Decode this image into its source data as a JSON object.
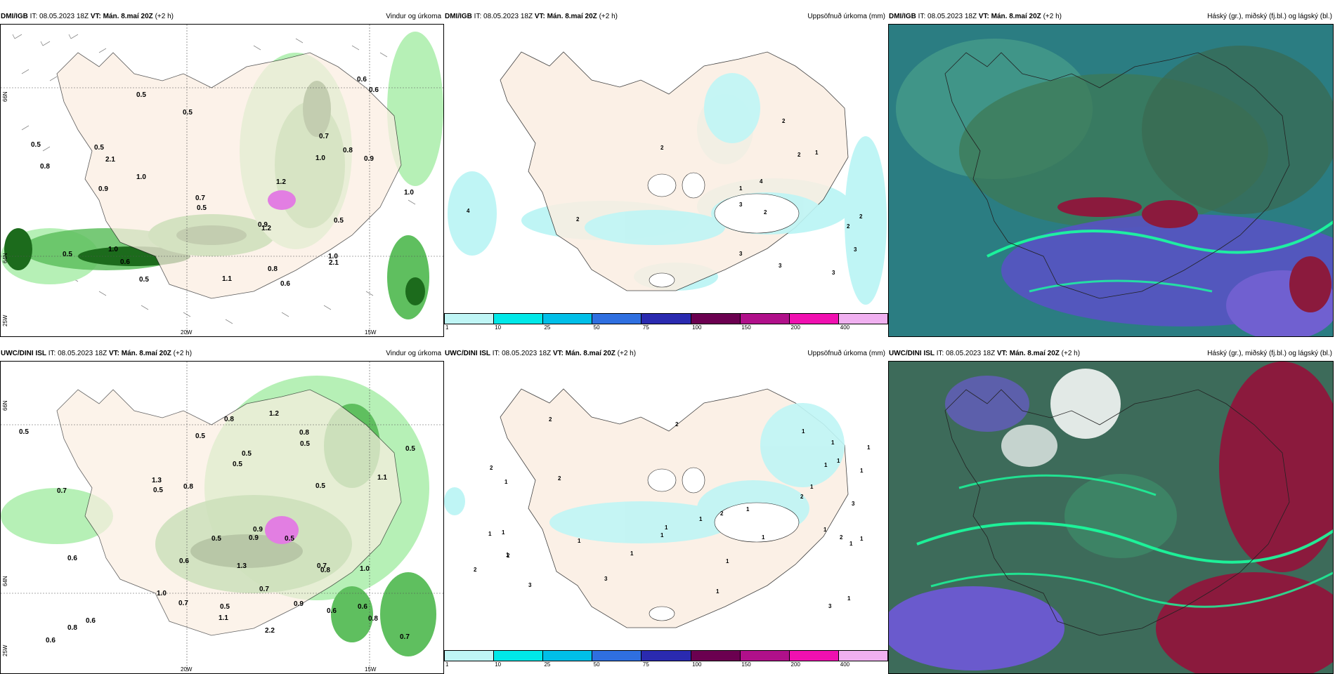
{
  "colors": {
    "land": "#fbeee2",
    "precip_light": "#b6f0b6",
    "precip_mid": "#5fbf5f",
    "precip_dark": "#1c6b1c",
    "precip_max": "#e27ee2",
    "accum_cyan": "#bff5f5",
    "cloud_bg": "#2b7d82",
    "cloud_green": "#3d9d71",
    "cloud_purple": "#6a5acd",
    "cloud_red": "#8b1a3d",
    "cloud_teal_line": "#1aff9f"
  },
  "panels": [
    {
      "source": "DMI/IGB",
      "it": "IT: 08.05.2023 18Z",
      "vt_label": "VT:",
      "vt": "Mán. 8.maí 20Z",
      "lead": "(+2 h)",
      "title": "Vindur og úrkoma"
    },
    {
      "source": "DMI/IGB",
      "it": "IT: 08.05.2023 18Z",
      "vt_label": "VT:",
      "vt": "Mán. 8.maí 20Z",
      "lead": "(+2 h)",
      "title": "Uppsöfnuð úrkoma (mm)"
    },
    {
      "source": "DMI/IGB",
      "it": "IT: 08.05.2023 18Z",
      "vt_label": "VT:",
      "vt": "Mán. 8.maí 20Z",
      "lead": "(+2 h)",
      "title": "Háský (gr.), miðský (fj.bl.) og lágský (bl.)"
    },
    {
      "source": "UWC/DINI ISL",
      "it": "IT: 08.05.2023 18Z",
      "vt_label": "VT:",
      "vt": "Mán. 8.maí 20Z",
      "lead": "(+2 h)",
      "title": "Vindur og úrkoma"
    },
    {
      "source": "UWC/DINI ISL",
      "it": "IT: 08.05.2023 18Z",
      "vt_label": "VT:",
      "vt": "Mán. 8.maí 20Z",
      "lead": "(+2 h)",
      "title": "Uppsöfnuð úrkoma (mm)"
    },
    {
      "source": "UWC/DINI ISL",
      "it": "IT: 08.05.2023 18Z",
      "vt_label": "VT:",
      "vt": "Mán. 8.maí 20Z",
      "lead": "(+2 h)",
      "title": "Háský (gr.), miðský (fj.bl.) og lágský (bl.)"
    }
  ],
  "axis_labels": {
    "lat_66": "66N",
    "lat_64": "64N",
    "lon_20": "20W",
    "lon_15": "15W",
    "lon_25": "25W"
  },
  "legend": {
    "ticks": [
      "1",
      "10",
      "25",
      "50",
      "75",
      "100",
      "150",
      "200",
      "400"
    ],
    "colors": [
      "#bff5f5",
      "#00e8e8",
      "#00bfe8",
      "#2f6fe0",
      "#2a2ab0",
      "#6b0050",
      "#b0108a",
      "#f010b0",
      "#f0b0f0"
    ]
  },
  "precip_labels_top": [
    "0.6",
    "0.5",
    "1.0",
    "0.5",
    "0.8",
    "0.8",
    "1.0",
    "1.0",
    "0.5",
    "0.6",
    "0.5",
    "0.5",
    "0.7",
    "0.9",
    "1.0",
    "0.6",
    "0.8",
    "0.6",
    "0.5",
    "0.9",
    "1.0",
    "1.2",
    "0.5",
    "2.1",
    "1.2",
    "0.7",
    "0.9",
    "2.1",
    "1.1",
    "0.5"
  ],
  "precip_labels_bottom": [
    "0.8",
    "1.0",
    "0.9",
    "1.3",
    "0.5",
    "1.2",
    "0.6",
    "0.8",
    "0.6",
    "1.0",
    "0.7",
    "0.5",
    "0.7",
    "0.8",
    "0.9",
    "1.3",
    "0.7",
    "0.6",
    "0.5",
    "0.5",
    "0.5",
    "0.6",
    "1.1",
    "0.5",
    "0.8",
    "0.5",
    "0.8",
    "0.5",
    "1.1",
    "0.7",
    "0.8",
    "0.6",
    "0.5",
    "0.6",
    "0.9",
    "2.2",
    "0.5",
    "0.5",
    "0.7"
  ],
  "accum_labels_top": [
    "3",
    "2",
    "2",
    "2",
    "3",
    "2",
    "1",
    "2",
    "3",
    "3",
    "4",
    "1",
    "4",
    "2",
    "2",
    "3"
  ],
  "accum_labels_bottom": [
    "2",
    "2",
    "2",
    "3",
    "2",
    "3",
    "3",
    "1",
    "3",
    "2",
    "2",
    "2",
    "2",
    "1",
    "1",
    "1",
    "1",
    "1",
    "1",
    "1",
    "1",
    "1",
    "1",
    "1",
    "1",
    "1",
    "1",
    "1",
    "1",
    "1",
    "1",
    "2",
    "1",
    "1",
    "1",
    "1",
    "1"
  ]
}
